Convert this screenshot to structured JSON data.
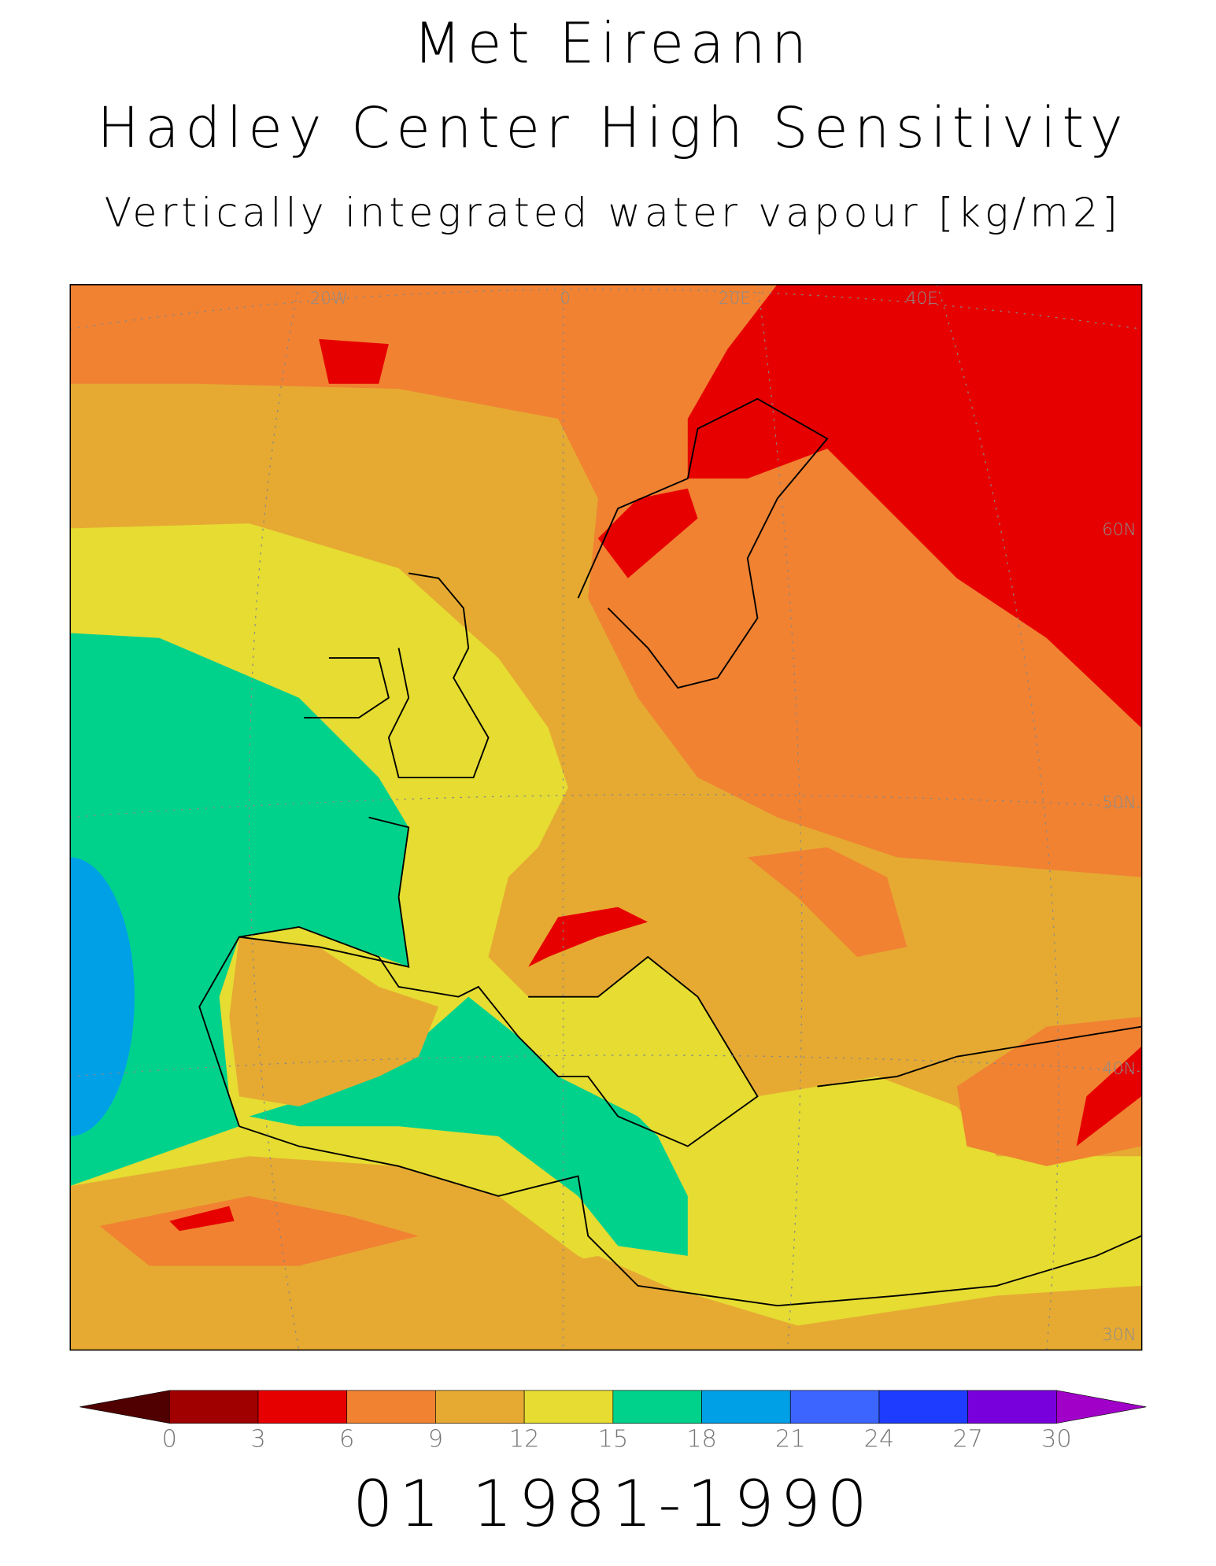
{
  "header": {
    "title": "Met Eireann",
    "model": "Hadley Center High Sensitivity",
    "variable": "Vertically integrated water vapour [kg/m2]"
  },
  "map": {
    "lon_labels": [
      "20W",
      "0",
      "20E",
      "40E"
    ],
    "lat_labels": [
      "60N",
      "50N",
      "40N",
      "30N"
    ]
  },
  "colorbar": {
    "ticks": [
      0,
      3,
      6,
      9,
      12,
      15,
      18,
      21,
      24,
      27,
      30
    ],
    "colors": [
      "#500000",
      "#a00000",
      "#e60000",
      "#f08232",
      "#e6aa32",
      "#e6dc32",
      "#00d28c",
      "#00a0e6",
      "#3c64ff",
      "#1e3cff",
      "#7800dc",
      "#a000c8"
    ]
  },
  "footer": {
    "period": "01 1981-1990"
  }
}
